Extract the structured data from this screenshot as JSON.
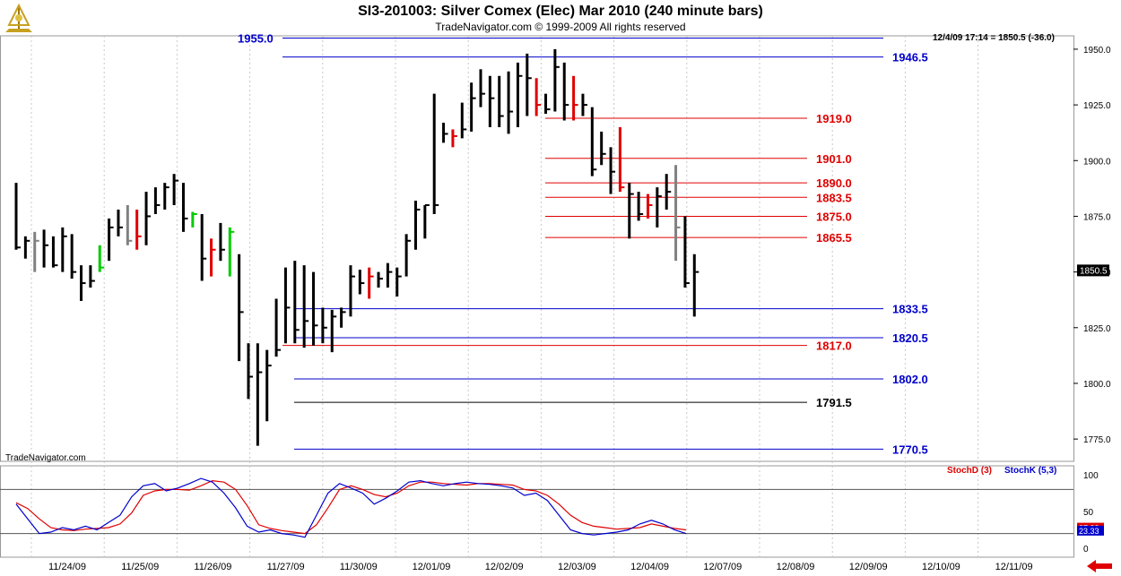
{
  "header": {
    "title": "SI3-201003:  Silver Comex (Elec) Mar 2010  (240 minute bars)",
    "subtitle": "TradeNavigator.com © 1999-2009 All rights reserved",
    "readout": "12/4/09 17:14 = 1850.5 (-36.0)",
    "watermark": "TradeNavigator.com"
  },
  "colors": {
    "up": "#000000",
    "down": "#e00000",
    "neutral": "#808080",
    "inside": "#00cc00",
    "support": "#0000cc",
    "resistance": "#e00000",
    "pivot": "#000000",
    "stochd": "#e00000",
    "stochk": "#0000cc"
  },
  "chart_data": [
    {
      "type": "ohlc",
      "x_labels": [
        "11/24/09",
        "11/25/09",
        "11/26/09",
        "11/27/09",
        "11/30/09",
        "12/01/09",
        "12/02/09",
        "12/03/09",
        "12/04/09",
        "12/07/09",
        "12/08/09",
        "12/09/09",
        "12/10/09",
        "12/11/09"
      ],
      "y_ticks": [
        "1950.0",
        "1925.0",
        "1900.0",
        "1875.0",
        "1850.0",
        "1825.0",
        "1800.0",
        "1775.0"
      ],
      "ylim": [
        1765,
        1956
      ],
      "last_price": "1850.5",
      "bars": [
        {
          "h": 1890,
          "l": 1860,
          "c": 1861,
          "col": "up"
        },
        {
          "h": 1866,
          "l": 1856,
          "c": 1864,
          "col": "up"
        },
        {
          "h": 1868,
          "l": 1850,
          "c": 1864,
          "col": "neutral"
        },
        {
          "h": 1869,
          "l": 1852,
          "c": 1862,
          "col": "up"
        },
        {
          "h": 1866,
          "l": 1852,
          "c": 1853,
          "col": "up"
        },
        {
          "h": 1870,
          "l": 1850,
          "c": 1866,
          "col": "up"
        },
        {
          "h": 1867,
          "l": 1847,
          "c": 1850,
          "col": "up"
        },
        {
          "h": 1853,
          "l": 1837,
          "c": 1845,
          "col": "up"
        },
        {
          "h": 1853,
          "l": 1843,
          "c": 1846,
          "col": "up"
        },
        {
          "h": 1862,
          "l": 1850,
          "c": 1852,
          "col": "inside"
        },
        {
          "h": 1874,
          "l": 1855,
          "c": 1870,
          "col": "up"
        },
        {
          "h": 1878,
          "l": 1866,
          "c": 1870,
          "col": "up"
        },
        {
          "h": 1880,
          "l": 1862,
          "c": 1864,
          "col": "neutral"
        },
        {
          "h": 1878,
          "l": 1860,
          "c": 1866,
          "col": "down"
        },
        {
          "h": 1886,
          "l": 1862,
          "c": 1875,
          "col": "up"
        },
        {
          "h": 1888,
          "l": 1876,
          "c": 1880,
          "col": "up"
        },
        {
          "h": 1890,
          "l": 1878,
          "c": 1888,
          "col": "up"
        },
        {
          "h": 1894,
          "l": 1880,
          "c": 1891,
          "col": "up"
        },
        {
          "h": 1890,
          "l": 1868,
          "c": 1874,
          "col": "up"
        },
        {
          "h": 1877,
          "l": 1870,
          "c": 1876,
          "col": "inside"
        },
        {
          "h": 1876,
          "l": 1846,
          "c": 1856,
          "col": "up"
        },
        {
          "h": 1865,
          "l": 1848,
          "c": 1860,
          "col": "down"
        },
        {
          "h": 1872,
          "l": 1855,
          "c": 1860,
          "col": "up"
        },
        {
          "h": 1870,
          "l": 1848,
          "c": 1868,
          "col": "inside"
        },
        {
          "h": 1858,
          "l": 1810,
          "c": 1832,
          "col": "up"
        },
        {
          "h": 1818,
          "l": 1793,
          "c": 1803,
          "col": "up"
        },
        {
          "h": 1818,
          "l": 1772,
          "c": 1805,
          "col": "up"
        },
        {
          "h": 1815,
          "l": 1783,
          "c": 1808,
          "col": "up"
        },
        {
          "h": 1838,
          "l": 1812,
          "c": 1815,
          "col": "up"
        },
        {
          "h": 1852,
          "l": 1818,
          "c": 1834,
          "col": "up"
        },
        {
          "h": 1855,
          "l": 1818,
          "c": 1824,
          "col": "up"
        },
        {
          "h": 1853,
          "l": 1816,
          "c": 1828,
          "col": "up"
        },
        {
          "h": 1850,
          "l": 1817,
          "c": 1826,
          "col": "up"
        },
        {
          "h": 1834,
          "l": 1818,
          "c": 1825,
          "col": "up"
        },
        {
          "h": 1833,
          "l": 1814,
          "c": 1830,
          "col": "up"
        },
        {
          "h": 1834,
          "l": 1825,
          "c": 1832,
          "col": "up"
        },
        {
          "h": 1853,
          "l": 1830,
          "c": 1848,
          "col": "up"
        },
        {
          "h": 1851,
          "l": 1840,
          "c": 1845,
          "col": "up"
        },
        {
          "h": 1852,
          "l": 1838,
          "c": 1848,
          "col": "down"
        },
        {
          "h": 1850,
          "l": 1843,
          "c": 1847,
          "col": "up"
        },
        {
          "h": 1854,
          "l": 1843,
          "c": 1850,
          "col": "up"
        },
        {
          "h": 1852,
          "l": 1839,
          "c": 1848,
          "col": "up"
        },
        {
          "h": 1867,
          "l": 1848,
          "c": 1864,
          "col": "up"
        },
        {
          "h": 1882,
          "l": 1860,
          "c": 1878,
          "col": "up"
        },
        {
          "h": 1880,
          "l": 1865,
          "c": 1880,
          "col": "up"
        },
        {
          "h": 1930,
          "l": 1876,
          "c": 1880,
          "col": "up"
        },
        {
          "h": 1917,
          "l": 1908,
          "c": 1912,
          "col": "up"
        },
        {
          "h": 1914,
          "l": 1906,
          "c": 1911,
          "col": "down"
        },
        {
          "h": 1926,
          "l": 1910,
          "c": 1914,
          "col": "up"
        },
        {
          "h": 1935,
          "l": 1913,
          "c": 1928,
          "col": "up"
        },
        {
          "h": 1941,
          "l": 1924,
          "c": 1930,
          "col": "up"
        },
        {
          "h": 1938,
          "l": 1915,
          "c": 1928,
          "col": "up"
        },
        {
          "h": 1938,
          "l": 1915,
          "c": 1920,
          "col": "up"
        },
        {
          "h": 1940,
          "l": 1912,
          "c": 1922,
          "col": "up"
        },
        {
          "h": 1944,
          "l": 1915,
          "c": 1938,
          "col": "up"
        },
        {
          "h": 1948,
          "l": 1920,
          "c": 1937,
          "col": "up"
        },
        {
          "h": 1937,
          "l": 1920,
          "c": 1925,
          "col": "down"
        },
        {
          "h": 1930,
          "l": 1921,
          "c": 1923,
          "col": "up"
        },
        {
          "h": 1950,
          "l": 1922,
          "c": 1942,
          "col": "up"
        },
        {
          "h": 1944,
          "l": 1918,
          "c": 1925,
          "col": "up"
        },
        {
          "h": 1938,
          "l": 1918,
          "c": 1925,
          "col": "down"
        },
        {
          "h": 1930,
          "l": 1920,
          "c": 1925,
          "col": "up"
        },
        {
          "h": 1924,
          "l": 1893,
          "c": 1896,
          "col": "up"
        },
        {
          "h": 1913,
          "l": 1898,
          "c": 1903,
          "col": "up"
        },
        {
          "h": 1906,
          "l": 1885,
          "c": 1895,
          "col": "up"
        },
        {
          "h": 1915,
          "l": 1886,
          "c": 1888,
          "col": "down"
        },
        {
          "h": 1890,
          "l": 1865,
          "c": 1885,
          "col": "up"
        },
        {
          "h": 1886,
          "l": 1873,
          "c": 1876,
          "col": "up"
        },
        {
          "h": 1885,
          "l": 1874,
          "c": 1880,
          "col": "down"
        },
        {
          "h": 1888,
          "l": 1870,
          "c": 1884,
          "col": "up"
        },
        {
          "h": 1894,
          "l": 1878,
          "c": 1886,
          "col": "up"
        },
        {
          "h": 1898,
          "l": 1855,
          "c": 1870,
          "col": "neutral"
        },
        {
          "h": 1875,
          "l": 1843,
          "c": 1845,
          "col": "up"
        },
        {
          "h": 1858,
          "l": 1830,
          "c": 1850,
          "col": "up"
        }
      ]
    },
    {
      "type": "line",
      "title": "StochD (3)",
      "ylim": [
        0,
        100
      ],
      "y_ticks": [
        "100",
        "50",
        "0"
      ],
      "level_lines": [
        80,
        20
      ],
      "last_values": [
        "27.33",
        "23.33"
      ],
      "series": [
        {
          "name": "StochD (3)",
          "values": [
            62,
            54,
            40,
            28,
            25,
            24,
            26,
            27,
            28,
            33,
            48,
            72,
            78,
            80,
            80,
            79,
            85,
            92,
            90,
            80,
            58,
            32,
            27,
            24,
            22,
            20,
            32,
            55,
            80,
            85,
            80,
            73,
            70,
            75,
            85,
            90,
            90,
            88,
            87,
            86,
            88,
            88,
            87,
            86,
            80,
            78,
            72,
            60,
            45,
            35,
            30,
            28,
            26,
            27,
            28,
            33,
            30,
            27,
            25
          ]
        },
        {
          "name": "StochK (5,3)",
          "values": [
            60,
            40,
            20,
            22,
            28,
            25,
            30,
            25,
            35,
            45,
            70,
            85,
            88,
            78,
            82,
            88,
            95,
            90,
            75,
            55,
            30,
            22,
            25,
            20,
            18,
            15,
            45,
            75,
            88,
            82,
            75,
            60,
            68,
            78,
            90,
            92,
            88,
            85,
            88,
            90,
            88,
            87,
            85,
            82,
            72,
            75,
            65,
            45,
            25,
            20,
            18,
            20,
            22,
            25,
            33,
            38,
            33,
            25,
            20
          ]
        }
      ]
    }
  ],
  "levels": [
    {
      "value": 1955.0,
      "label": "1955.0",
      "color": "#0000cc"
    },
    {
      "value": 1946.5,
      "label": "1946.5",
      "color": "#0000cc"
    },
    {
      "value": 1919.0,
      "label": "1919.0",
      "color": "#e00000"
    },
    {
      "value": 1901.0,
      "label": "1901.0",
      "color": "#e00000"
    },
    {
      "value": 1890.0,
      "label": "1890.0",
      "color": "#e00000"
    },
    {
      "value": 1883.5,
      "label": "1883.5",
      "color": "#e00000"
    },
    {
      "value": 1875.0,
      "label": "1875.0",
      "color": "#e00000"
    },
    {
      "value": 1865.5,
      "label": "1865.5",
      "color": "#e00000"
    },
    {
      "value": 1833.5,
      "label": "1833.5",
      "color": "#0000cc"
    },
    {
      "value": 1820.5,
      "label": "1820.5",
      "color": "#0000cc"
    },
    {
      "value": 1817.0,
      "label": "1817.0",
      "color": "#e00000"
    },
    {
      "value": 1802.0,
      "label": "1802.0",
      "color": "#0000cc"
    },
    {
      "value": 1791.5,
      "label": "1791.5",
      "color": "#000000"
    },
    {
      "value": 1770.5,
      "label": "1770.5",
      "color": "#0000cc"
    }
  ]
}
